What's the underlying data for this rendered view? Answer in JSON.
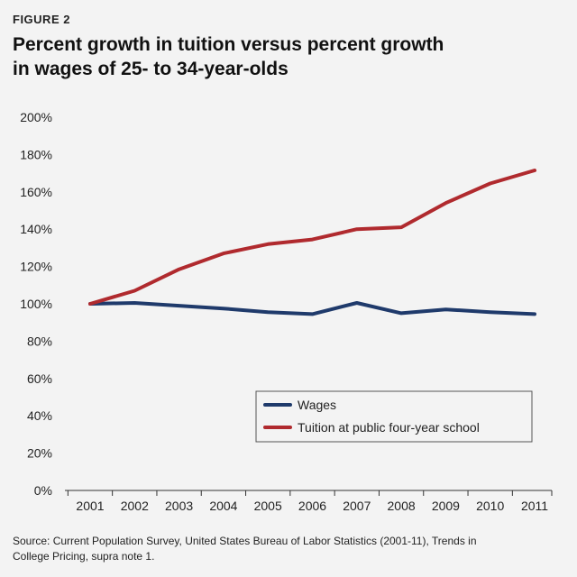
{
  "header": {
    "figure_label": "FIGURE 2",
    "title_line1": "Percent growth in tuition versus percent growth",
    "title_line2": "in wages of 25- to 34-year-olds"
  },
  "source": {
    "line1": "Source: Current Population Survey, United States Bureau of Labor Statistics (2001-11), Trends in",
    "line2": "College Pricing, supra note 1."
  },
  "colors": {
    "wages": "#1f3a6b",
    "tuition": "#b02a2e",
    "axis": "#333333",
    "background": "#f3f3f3"
  },
  "chart_data": {
    "type": "line",
    "title": "Percent growth in tuition versus percent growth in wages of 25- to 34-year-olds",
    "xlabel": "",
    "ylabel": "",
    "x": [
      "2001",
      "2002",
      "2003",
      "2004",
      "2005",
      "2006",
      "2007",
      "2008",
      "2009",
      "2010",
      "2011"
    ],
    "ylim": [
      0,
      200
    ],
    "yticks": [
      "0%",
      "20%",
      "40%",
      "60%",
      "80%",
      "100%",
      "120%",
      "140%",
      "160%",
      "180%",
      "200%"
    ],
    "grid": false,
    "legend_position": "bottom-right",
    "series": [
      {
        "name": "Wages",
        "color": "#1f3a6b",
        "values": [
          100,
          100.5,
          99,
          97.5,
          95.5,
          94.5,
          100.5,
          95,
          97,
          95.5,
          94.5
        ]
      },
      {
        "name": "Tuition at public four-year school",
        "color": "#b02a2e",
        "values": [
          100,
          107,
          118.5,
          127,
          132,
          134.5,
          140,
          141,
          154,
          164.5,
          171.5
        ]
      }
    ]
  }
}
